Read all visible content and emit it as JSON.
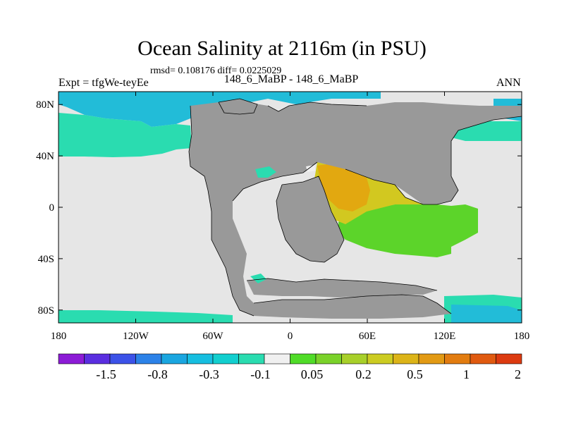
{
  "figure": {
    "title": "Ocean Salinity at 2116m (in PSU)",
    "stats": "rmsd= 0.108176 diff= 0.0225029",
    "left_label": "Expt = tfgWe-teyEe",
    "center_label": "148_6_MaBP - 148_6_MaBP",
    "right_label": "ANN"
  },
  "chart_data": {
    "type": "heatmap",
    "title": "Ocean Salinity at 2116m (in PSU)",
    "subtitle": "148_6_MaBP - 148_6_MaBP",
    "stats": {
      "rmsd": 0.108176,
      "diff": 0.0225029
    },
    "xlabel": "",
    "ylabel": "",
    "xlim": [
      -180,
      180
    ],
    "ylim": [
      -90,
      90
    ],
    "x_ticks": [
      {
        "value": -180,
        "label": "180"
      },
      {
        "value": -120,
        "label": "120W"
      },
      {
        "value": -60,
        "label": "60W"
      },
      {
        "value": 0,
        "label": "0"
      },
      {
        "value": 60,
        "label": "60E"
      },
      {
        "value": 120,
        "label": "120E"
      },
      {
        "value": 180,
        "label": "180"
      }
    ],
    "y_ticks": [
      {
        "value": 80,
        "label": "80N"
      },
      {
        "value": 40,
        "label": "40N"
      },
      {
        "value": 0,
        "label": "0"
      },
      {
        "value": -40,
        "label": "40S"
      },
      {
        "value": -80,
        "label": "80S"
      }
    ],
    "colorbar": {
      "colors": [
        "#8c1bd6",
        "#5a2ee0",
        "#3c52e8",
        "#2c82e8",
        "#1aa6e0",
        "#16bee0",
        "#12cfcf",
        "#2adcb0",
        "#f0f0f0",
        "#50dc28",
        "#7ad22a",
        "#a8d02a",
        "#cccc22",
        "#dcb418",
        "#e29a14",
        "#e27c10",
        "#e05a10",
        "#dc3a10"
      ],
      "boundaries": [
        -1.5,
        -0.8,
        -0.3,
        -0.1,
        0.05,
        0.2,
        0.5,
        1,
        2
      ],
      "labels": [
        "-1.5",
        "-0.8",
        "-0.3",
        "-0.1",
        "0.05",
        "0.2",
        "0.5",
        "1",
        "2"
      ]
    },
    "features": [
      {
        "name": "land",
        "color": "#999999"
      },
      {
        "name": "near-zero ocean",
        "color": "#e6e6e6"
      },
      {
        "name": "arctic fresh",
        "color": "#22bcd8"
      },
      {
        "name": "north pacific band",
        "color": "#2adcb0"
      },
      {
        "name": "southern ocean band",
        "color": "#2adcb0"
      },
      {
        "name": "tethys positive anomaly",
        "color": "#e2a810"
      },
      {
        "name": "tethys outer",
        "color": "#d2c820"
      },
      {
        "name": "indian ocean tongue",
        "color": "#5cd42a"
      }
    ]
  }
}
